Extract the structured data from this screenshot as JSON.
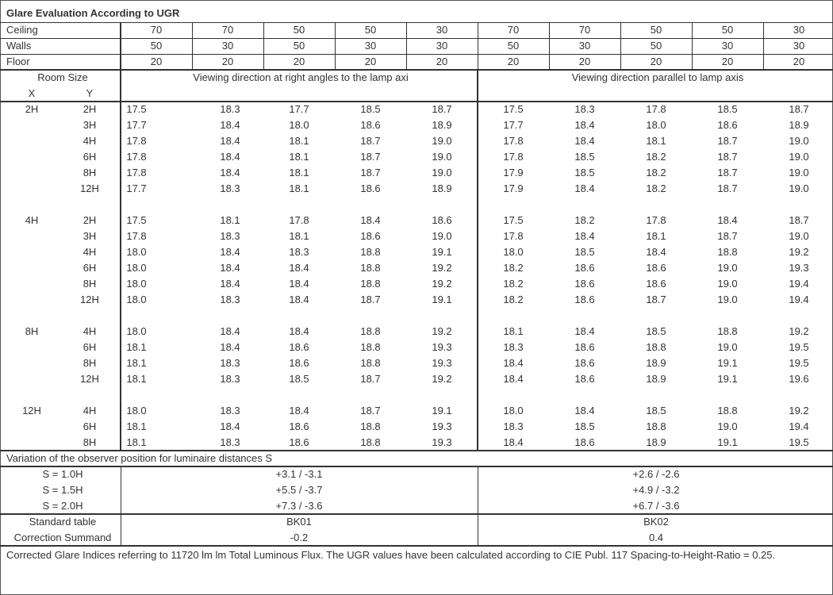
{
  "title": "Glare Evaluation According to UGR",
  "reflectances": [
    {
      "label": "Ceiling",
      "values": [
        "70",
        "70",
        "50",
        "50",
        "30",
        "70",
        "70",
        "50",
        "50",
        "30"
      ]
    },
    {
      "label": "Walls",
      "values": [
        "50",
        "30",
        "50",
        "30",
        "30",
        "50",
        "30",
        "50",
        "30",
        "30"
      ]
    },
    {
      "label": "Floor",
      "values": [
        "20",
        "20",
        "20",
        "20",
        "20",
        "20",
        "20",
        "20",
        "20",
        "20"
      ]
    }
  ],
  "header": {
    "room_size": "Room Size",
    "x_label": "X",
    "y_label": "Y",
    "perpendicular": "Viewing direction at right angles to the lamp axi",
    "parallel": "Viewing direction parallel to lamp axis"
  },
  "groups": [
    {
      "x": "2H",
      "rows": [
        {
          "y": "2H",
          "values": [
            "17.5",
            "18.3",
            "17.7",
            "18.5",
            "18.7",
            "17.5",
            "18.3",
            "17.8",
            "18.5",
            "18.7"
          ]
        },
        {
          "y": "3H",
          "values": [
            "17.7",
            "18.4",
            "18.0",
            "18.6",
            "18.9",
            "17.7",
            "18.4",
            "18.0",
            "18.6",
            "18.9"
          ]
        },
        {
          "y": "4H",
          "values": [
            "17.8",
            "18.4",
            "18.1",
            "18.7",
            "19.0",
            "17.8",
            "18.4",
            "18.1",
            "18.7",
            "19.0"
          ]
        },
        {
          "y": "6H",
          "values": [
            "17.8",
            "18.4",
            "18.1",
            "18.7",
            "19.0",
            "17.8",
            "18.5",
            "18.2",
            "18.7",
            "19.0"
          ]
        },
        {
          "y": "8H",
          "values": [
            "17.8",
            "18.4",
            "18.1",
            "18.7",
            "19.0",
            "17.9",
            "18.5",
            "18.2",
            "18.7",
            "19.0"
          ]
        },
        {
          "y": "12H",
          "values": [
            "17.7",
            "18.3",
            "18.1",
            "18.6",
            "18.9",
            "17.9",
            "18.4",
            "18.2",
            "18.7",
            "19.0"
          ]
        }
      ]
    },
    {
      "x": "4H",
      "rows": [
        {
          "y": "2H",
          "values": [
            "17.5",
            "18.1",
            "17.8",
            "18.4",
            "18.6",
            "17.5",
            "18.2",
            "17.8",
            "18.4",
            "18.7"
          ]
        },
        {
          "y": "3H",
          "values": [
            "17.8",
            "18.3",
            "18.1",
            "18.6",
            "19.0",
            "17.8",
            "18.4",
            "18.1",
            "18.7",
            "19.0"
          ]
        },
        {
          "y": "4H",
          "values": [
            "18.0",
            "18.4",
            "18.3",
            "18.8",
            "19.1",
            "18.0",
            "18.5",
            "18.4",
            "18.8",
            "19.2"
          ]
        },
        {
          "y": "6H",
          "values": [
            "18.0",
            "18.4",
            "18.4",
            "18.8",
            "19.2",
            "18.2",
            "18.6",
            "18.6",
            "19.0",
            "19.3"
          ]
        },
        {
          "y": "8H",
          "values": [
            "18.0",
            "18.4",
            "18.4",
            "18.8",
            "19.2",
            "18.2",
            "18.6",
            "18.6",
            "19.0",
            "19.4"
          ]
        },
        {
          "y": "12H",
          "values": [
            "18.0",
            "18.3",
            "18.4",
            "18.7",
            "19.1",
            "18.2",
            "18.6",
            "18.7",
            "19.0",
            "19.4"
          ]
        }
      ]
    },
    {
      "x": "8H",
      "rows": [
        {
          "y": "4H",
          "values": [
            "18.0",
            "18.4",
            "18.4",
            "18.8",
            "19.2",
            "18.1",
            "18.4",
            "18.5",
            "18.8",
            "19.2"
          ]
        },
        {
          "y": "6H",
          "values": [
            "18.1",
            "18.4",
            "18.6",
            "18.8",
            "19.3",
            "18.3",
            "18.6",
            "18.8",
            "19.0",
            "19.5"
          ]
        },
        {
          "y": "8H",
          "values": [
            "18.1",
            "18.3",
            "18.6",
            "18.8",
            "19.3",
            "18.4",
            "18.6",
            "18.9",
            "19.1",
            "19.5"
          ]
        },
        {
          "y": "12H",
          "values": [
            "18.1",
            "18.3",
            "18.5",
            "18.7",
            "19.2",
            "18.4",
            "18.6",
            "18.9",
            "19.1",
            "19.6"
          ]
        }
      ]
    },
    {
      "x": "12H",
      "rows": [
        {
          "y": "4H",
          "values": [
            "18.0",
            "18.3",
            "18.4",
            "18.7",
            "19.1",
            "18.0",
            "18.4",
            "18.5",
            "18.8",
            "19.2"
          ]
        },
        {
          "y": "6H",
          "values": [
            "18.1",
            "18.4",
            "18.6",
            "18.8",
            "19.3",
            "18.3",
            "18.5",
            "18.8",
            "19.0",
            "19.4"
          ]
        },
        {
          "y": "8H",
          "values": [
            "18.1",
            "18.3",
            "18.6",
            "18.8",
            "19.3",
            "18.4",
            "18.6",
            "18.9",
            "19.1",
            "19.5"
          ]
        }
      ]
    }
  ],
  "variation": {
    "title": "Variation of the observer position for luminaire distances S",
    "rows": [
      {
        "label": "S = 1.0H",
        "perpendicular": "+3.1 / -3.1",
        "parallel": "+2.6 / -2.6"
      },
      {
        "label": "S = 1.5H",
        "perpendicular": "+5.5 / -3.7",
        "parallel": "+4.9 / -3.2"
      },
      {
        "label": "S = 2.0H",
        "perpendicular": "+7.3 / -3.6",
        "parallel": "+6.7 / -3.6"
      }
    ]
  },
  "standard_table": {
    "label": "Standard table",
    "perpendicular": "BK01",
    "parallel": "BK02"
  },
  "correction": {
    "label": "Correction Summand",
    "perpendicular": "-0.2",
    "parallel": "0.4"
  },
  "footer": "Corrected Glare Indices referring to 11720 lm lm Total Luminous Flux. The UGR values have been calculated according to CIE Publ. 117    Spacing-to-Height-Ratio = 0.25."
}
